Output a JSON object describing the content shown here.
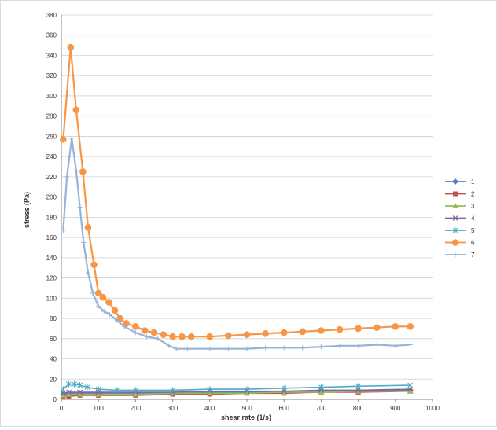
{
  "chart_data": {
    "type": "line",
    "xlabel": "shear rate (1/s)",
    "ylabel": "stress (Pa)",
    "xlim": [
      0,
      1000
    ],
    "ylim": [
      0,
      380
    ],
    "xticks": [
      0,
      100,
      200,
      300,
      400,
      500,
      600,
      700,
      800,
      900,
      1000
    ],
    "yticks": [
      0,
      20,
      40,
      60,
      80,
      100,
      120,
      140,
      160,
      180,
      200,
      220,
      240,
      260,
      280,
      300,
      320,
      340,
      360,
      380
    ],
    "grid": "horizontal",
    "legend": "right",
    "series": [
      {
        "name": "1",
        "color": "#4f81bd",
        "marker": "diamond",
        "x": [
          5,
          20,
          50,
          100,
          200,
          300,
          400,
          500,
          600,
          700,
          800,
          940
        ],
        "y": [
          5,
          6,
          6,
          6,
          6,
          6,
          7,
          7,
          7,
          8,
          8,
          9
        ]
      },
      {
        "name": "2",
        "color": "#c0504d",
        "marker": "square",
        "x": [
          5,
          20,
          50,
          100,
          200,
          300,
          400,
          500,
          600,
          700,
          800,
          940
        ],
        "y": [
          3,
          3,
          4,
          4,
          4,
          5,
          5,
          6,
          6,
          7,
          7,
          8
        ]
      },
      {
        "name": "3",
        "color": "#9bbb59",
        "marker": "triangle",
        "x": [
          5,
          20,
          50,
          100,
          200,
          300,
          400,
          500,
          600,
          700,
          800,
          940
        ],
        "y": [
          4,
          5,
          5,
          5,
          5,
          6,
          6,
          6,
          7,
          7,
          8,
          8
        ]
      },
      {
        "name": "4",
        "color": "#8064a2",
        "marker": "x",
        "x": [
          5,
          20,
          50,
          100,
          200,
          300,
          400,
          500,
          600,
          700,
          800,
          940
        ],
        "y": [
          6,
          7,
          7,
          7,
          7,
          7,
          8,
          8,
          8,
          9,
          9,
          10
        ]
      },
      {
        "name": "5",
        "color": "#4bacc6",
        "marker": "star",
        "x": [
          5,
          20,
          35,
          50,
          70,
          100,
          150,
          200,
          300,
          400,
          500,
          600,
          700,
          800,
          940
        ],
        "y": [
          10,
          15,
          15,
          14,
          12,
          10,
          9,
          9,
          9,
          10,
          10,
          11,
          12,
          13,
          14
        ]
      },
      {
        "name": "6",
        "color": "#f79646",
        "marker": "circle",
        "x": [
          5,
          25,
          40,
          58,
          72,
          88,
          100,
          112,
          128,
          144,
          158,
          175,
          200,
          225,
          250,
          275,
          300,
          325,
          350,
          400,
          450,
          500,
          550,
          600,
          650,
          700,
          750,
          800,
          850,
          900,
          940
        ],
        "y": [
          257,
          348,
          286,
          225,
          170,
          133,
          105,
          101,
          96,
          88,
          80,
          75,
          72,
          68,
          66,
          64,
          62,
          62,
          62,
          62,
          63,
          64,
          65,
          66,
          67,
          68,
          69,
          70,
          71,
          72,
          72
        ]
      },
      {
        "name": "7",
        "color": "#95b3d7",
        "marker": "plus",
        "x": [
          5,
          15,
          28,
          40,
          50,
          60,
          72,
          85,
          100,
          115,
          130,
          150,
          170,
          200,
          230,
          260,
          290,
          310,
          340,
          400,
          450,
          500,
          550,
          600,
          650,
          700,
          750,
          800,
          850,
          900,
          940
        ],
        "y": [
          167,
          220,
          258,
          226,
          190,
          155,
          125,
          105,
          92,
          87,
          84,
          78,
          72,
          66,
          62,
          60,
          53,
          50,
          50,
          50,
          50,
          50,
          51,
          51,
          51,
          52,
          53,
          53,
          54,
          53,
          54
        ]
      }
    ]
  }
}
